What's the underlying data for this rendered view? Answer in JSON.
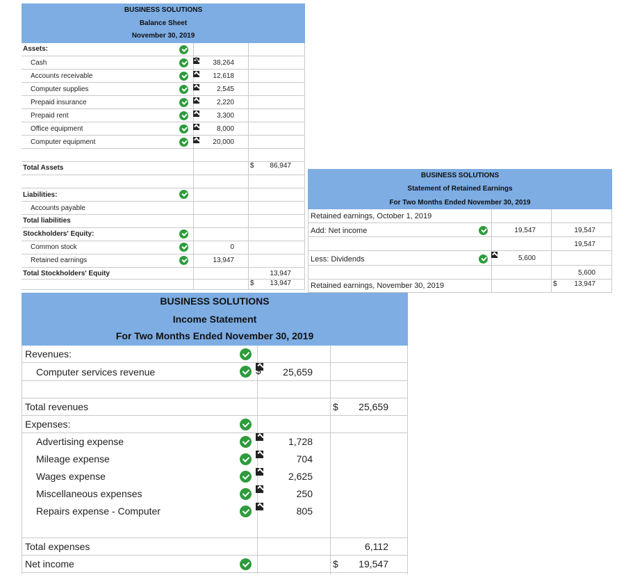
{
  "balance_sheet": {
    "company": "BUSINESS SOLUTIONS",
    "title": "Balance Sheet",
    "date": "November 30, 2019",
    "assets_label": "Assets:",
    "asset_items": [
      {
        "label": "Cash",
        "amount": "38,264",
        "currency": "$"
      },
      {
        "label": "Accounts receivable",
        "amount": "12,618",
        "currency": ""
      },
      {
        "label": "Computer supplies",
        "amount": "2,545",
        "currency": ""
      },
      {
        "label": "Prepaid insurance",
        "amount": "2,220",
        "currency": ""
      },
      {
        "label": "Prepaid rent",
        "amount": "3,300",
        "currency": ""
      },
      {
        "label": "Office equipment",
        "amount": "8,000",
        "currency": ""
      },
      {
        "label": "Computer equipment",
        "amount": "20,000",
        "currency": ""
      }
    ],
    "total_assets_label": "Total Assets",
    "total_assets_currency": "$",
    "total_assets": "86,947",
    "liabilities_label": "Liabilities:",
    "accounts_payable_label": "Accounts payable",
    "total_liabilities_label": "Total liabilities",
    "equity_label": "Stockholders' Equity:",
    "common_stock_label": "Common stock",
    "common_stock": "0",
    "retained_earnings_label": "Retained earnings",
    "retained_earnings": "13,947",
    "total_equity_label": "Total Stockholders' Equity",
    "total_equity": "13,947",
    "total_le_currency": "$",
    "total_le": "13,947"
  },
  "retained_earnings_statement": {
    "company": "BUSINESS SOLUTIONS",
    "title": "Statement of Retained Earnings",
    "period": "For Two Months Ended November 30, 2019",
    "beginning_label": "Retained earnings, October 1, 2019",
    "net_income_label": "Add:  Net income",
    "net_income": "19,547",
    "net_income_total": "19,547",
    "subtotal": "19,547",
    "dividends_label": "Less:  Dividends",
    "dividends": "5,600",
    "dividends_total": "5,600",
    "ending_label": "Retained earnings, November 30, 2019",
    "ending_currency": "$",
    "ending": "13,947"
  },
  "income_statement": {
    "company": "BUSINESS SOLUTIONS",
    "title": "Income Statement",
    "period": "For Two Months Ended November 30, 2019",
    "revenues_label": "Revenues:",
    "revenue_item_label": "Computer services revenue",
    "revenue_item_currency": "$",
    "revenue_item": "25,659",
    "total_revenues_label": "Total revenues",
    "total_revenues_currency": "$",
    "total_revenues": "25,659",
    "expenses_label": "Expenses:",
    "expense_items": [
      {
        "label": "Advertising expense",
        "amount": "1,728"
      },
      {
        "label": "Mileage expense",
        "amount": "704"
      },
      {
        "label": "Wages expense",
        "amount": "2,625"
      },
      {
        "label": "Miscellaneous expenses",
        "amount": "250"
      },
      {
        "label": "Repairs expense - Computer",
        "amount": "805"
      }
    ],
    "total_expenses_label": "Total expenses",
    "total_expenses": "6,112",
    "net_income_label": "Net income",
    "net_income_currency": "$",
    "net_income": "19,547"
  },
  "colors": {
    "header": "#7dade3",
    "check": "#2e9b3c",
    "grid": "#c9c9c9"
  },
  "icons": {
    "check": "check-circle-icon",
    "flag": "feedback-flag-icon"
  }
}
